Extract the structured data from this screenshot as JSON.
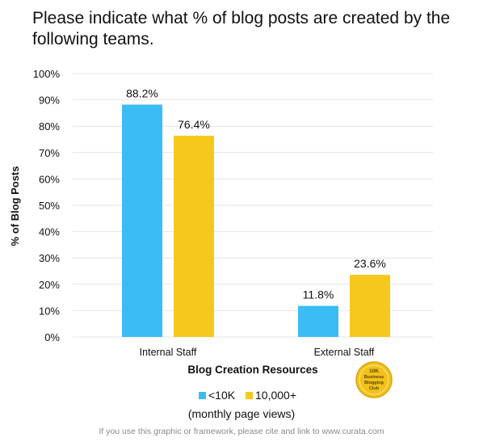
{
  "colors": {
    "series_1": "#3bbcf4",
    "series_2": "#f7c81c",
    "grid": "#e4e4e4"
  },
  "legend_note": "(monthly page views)",
  "badge": {
    "lines": [
      "10K",
      "Business",
      "Blogging",
      "Club"
    ],
    "color": "#f2c21b"
  },
  "footnote": "If you use this graphic or framework, please cite and link to www.curata.com",
  "chart_data": {
    "type": "bar",
    "title": "Please indicate what % of blog posts are created by the following teams.",
    "xlabel": "Blog Creation Resources",
    "ylabel": "% of Blog Posts",
    "categories": [
      "Internal Staff",
      "External Staff"
    ],
    "series": [
      {
        "name": "<10K",
        "values": [
          88.2,
          11.8
        ],
        "labels": [
          "88.2%",
          "11.8%"
        ]
      },
      {
        "name": "10,000+",
        "values": [
          76.4,
          23.6
        ],
        "labels": [
          "76.4%",
          "23.6%"
        ]
      }
    ],
    "ylim": [
      0,
      100
    ],
    "yticks": [
      0,
      10,
      20,
      30,
      40,
      50,
      60,
      70,
      80,
      90,
      100
    ],
    "ytick_labels": [
      "0%",
      "10%",
      "20%",
      "30%",
      "40%",
      "50%",
      "60%",
      "70%",
      "80%",
      "90%",
      "100%"
    ],
    "grid": true,
    "legend_position": "bottom"
  }
}
